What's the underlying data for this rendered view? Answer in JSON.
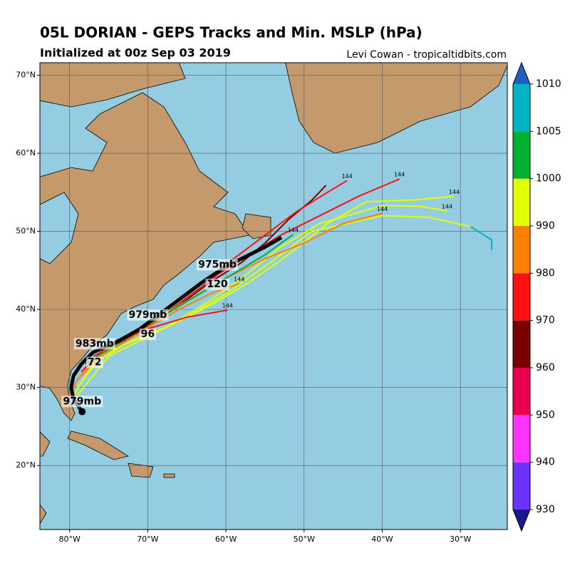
{
  "chart_data": {
    "type": "track-map",
    "title": "05L DORIAN - GEPS Tracks and Min. MSLP (hPa)",
    "subtitle": "Initialized at 00z Sep 03 2019",
    "credit": "Levi Cowan - tropicaltidbits.com",
    "xlim": [
      -83.8,
      -24.0
    ],
    "ylim": [
      11.8,
      71.6
    ],
    "xticks": [
      {
        "value": -80,
        "label": "80°W"
      },
      {
        "value": -70,
        "label": "70°W"
      },
      {
        "value": -60,
        "label": "60°W"
      },
      {
        "value": -50,
        "label": "50°W"
      },
      {
        "value": -40,
        "label": "40°W"
      },
      {
        "value": -30,
        "label": "30°W"
      }
    ],
    "yticks": [
      {
        "value": 20,
        "label": "20°N"
      },
      {
        "value": 30,
        "label": "30°N"
      },
      {
        "value": 40,
        "label": "40°N"
      },
      {
        "value": 50,
        "label": "50°N"
      },
      {
        "value": 60,
        "label": "60°N"
      },
      {
        "value": 70,
        "label": "70°N"
      }
    ],
    "grid": true,
    "tracks": [
      {
        "color": "#7a0000",
        "lon": [
          -77,
          -74,
          -70,
          -66,
          -62,
          -58,
          -55,
          -52,
          -49,
          -47.2
        ],
        "lat": [
          34.5,
          36,
          38,
          40.5,
          43.5,
          46,
          48.5,
          51.5,
          54,
          55.9
        ]
      },
      {
        "color": "#ff1010",
        "lon": [
          -78,
          -75,
          -71,
          -67,
          -63,
          -59,
          -55,
          -51,
          -47,
          -44.5
        ],
        "lat": [
          33,
          35,
          37.5,
          40.5,
          43.5,
          46.5,
          49.5,
          52.5,
          55,
          56.5
        ],
        "label": 144
      },
      {
        "color": "#ff1010",
        "lon": [
          -77,
          -73,
          -69,
          -65,
          -61,
          -57,
          -53,
          -48,
          -43,
          -37.8
        ],
        "lat": [
          34,
          36,
          38.5,
          41.5,
          44.5,
          47,
          49.5,
          52,
          54.5,
          56.7
        ],
        "label": 144
      },
      {
        "color": "#e0ff00",
        "lon": [
          -79,
          -76,
          -72,
          -67,
          -62,
          -57,
          -52,
          -47,
          -42,
          -36,
          -30.8
        ],
        "lat": [
          30,
          34,
          36,
          38,
          40.5,
          43.5,
          47,
          51,
          53.8,
          54,
          54.5
        ],
        "label": 144
      },
      {
        "color": "#e0ff00",
        "lon": [
          -79.5,
          -77,
          -73,
          -68,
          -63,
          -58,
          -53,
          -48,
          -40,
          -35,
          -31.7
        ],
        "lat": [
          29,
          33,
          35.5,
          37.5,
          40.5,
          44,
          48,
          51,
          53.3,
          53.2,
          52.6
        ],
        "label": 144
      },
      {
        "color": "#e0ff00",
        "lon": [
          -79,
          -75,
          -70,
          -65,
          -60,
          -55,
          -49,
          -40,
          -34,
          -28.7
        ],
        "lat": [
          29,
          34,
          36.5,
          39,
          42,
          45.5,
          50,
          52,
          51.8,
          50.6
        ]
      },
      {
        "color": "#00b4c4",
        "lon": [
          -28.7,
          -26,
          -26
        ],
        "lat": [
          50.6,
          48.9,
          47.6
        ]
      },
      {
        "color": "#ff7f00",
        "lon": [
          -79,
          -76,
          -72,
          -66,
          -60,
          -55,
          -50,
          -45,
          -40
        ],
        "lat": [
          31,
          34.5,
          37,
          40.5,
          44,
          46.5,
          48.5,
          51,
          52.3
        ],
        "label": 144
      },
      {
        "color": "#ff1010",
        "lon": [
          -78.5,
          -75,
          -70,
          -65,
          -59.8
        ],
        "lat": [
          32,
          35.5,
          37.5,
          39,
          39.9
        ],
        "label": 144
      },
      {
        "color": "#00b030",
        "lon": [
          -78,
          -74,
          -70,
          -65,
          -60,
          -55,
          -51.4
        ],
        "lat": [
          33,
          35.5,
          38,
          41,
          44,
          47,
          49.6
        ],
        "label": 144
      },
      {
        "color": "#ff7f00",
        "lon": [
          -80.5,
          -79,
          -76,
          -71,
          -66,
          -62,
          -58.3
        ],
        "lat": [
          28,
          31,
          34,
          37,
          40,
          42,
          43.3
        ],
        "label": 144
      },
      {
        "color": "#000000",
        "mean": true,
        "lon": [
          -78.4,
          -79.5,
          -79.8,
          -79.5,
          -78.5,
          -77,
          -74,
          -71,
          -67,
          -63,
          -60,
          -55,
          -52.9
        ],
        "lat": [
          26.9,
          28.5,
          30,
          31.5,
          33,
          34.5,
          35.8,
          37.5,
          40.5,
          43.5,
          45.5,
          48,
          49.2
        ]
      }
    ],
    "annotations": [
      {
        "text": "975mb",
        "lon": -61.1,
        "lat": 45.7
      },
      {
        "text": 120,
        "lon": -61.1,
        "lat": 43.2
      },
      {
        "text": "979mb",
        "lon": -70.0,
        "lat": 39.3
      },
      {
        "text": 96,
        "lon": -70.0,
        "lat": 36.8
      },
      {
        "text": "983mb",
        "lon": -76.8,
        "lat": 35.6
      },
      {
        "text": 72,
        "lon": -76.8,
        "lat": 33.2
      },
      {
        "text": "979mb",
        "lon": -78.4,
        "lat": 28.2
      }
    ],
    "colorbar": {
      "ticks": [
        930,
        940,
        950,
        960,
        970,
        980,
        990,
        1000,
        1005,
        1010
      ],
      "colors": [
        "#6a33ff",
        "#ff33ff",
        "#e8004f",
        "#7a0000",
        "#ff1010",
        "#ff7f00",
        "#e0ff00",
        "#00b030",
        "#00b4c4"
      ],
      "extend_low": "#1a1a8c",
      "extend_high": "#1f5fbf"
    }
  }
}
